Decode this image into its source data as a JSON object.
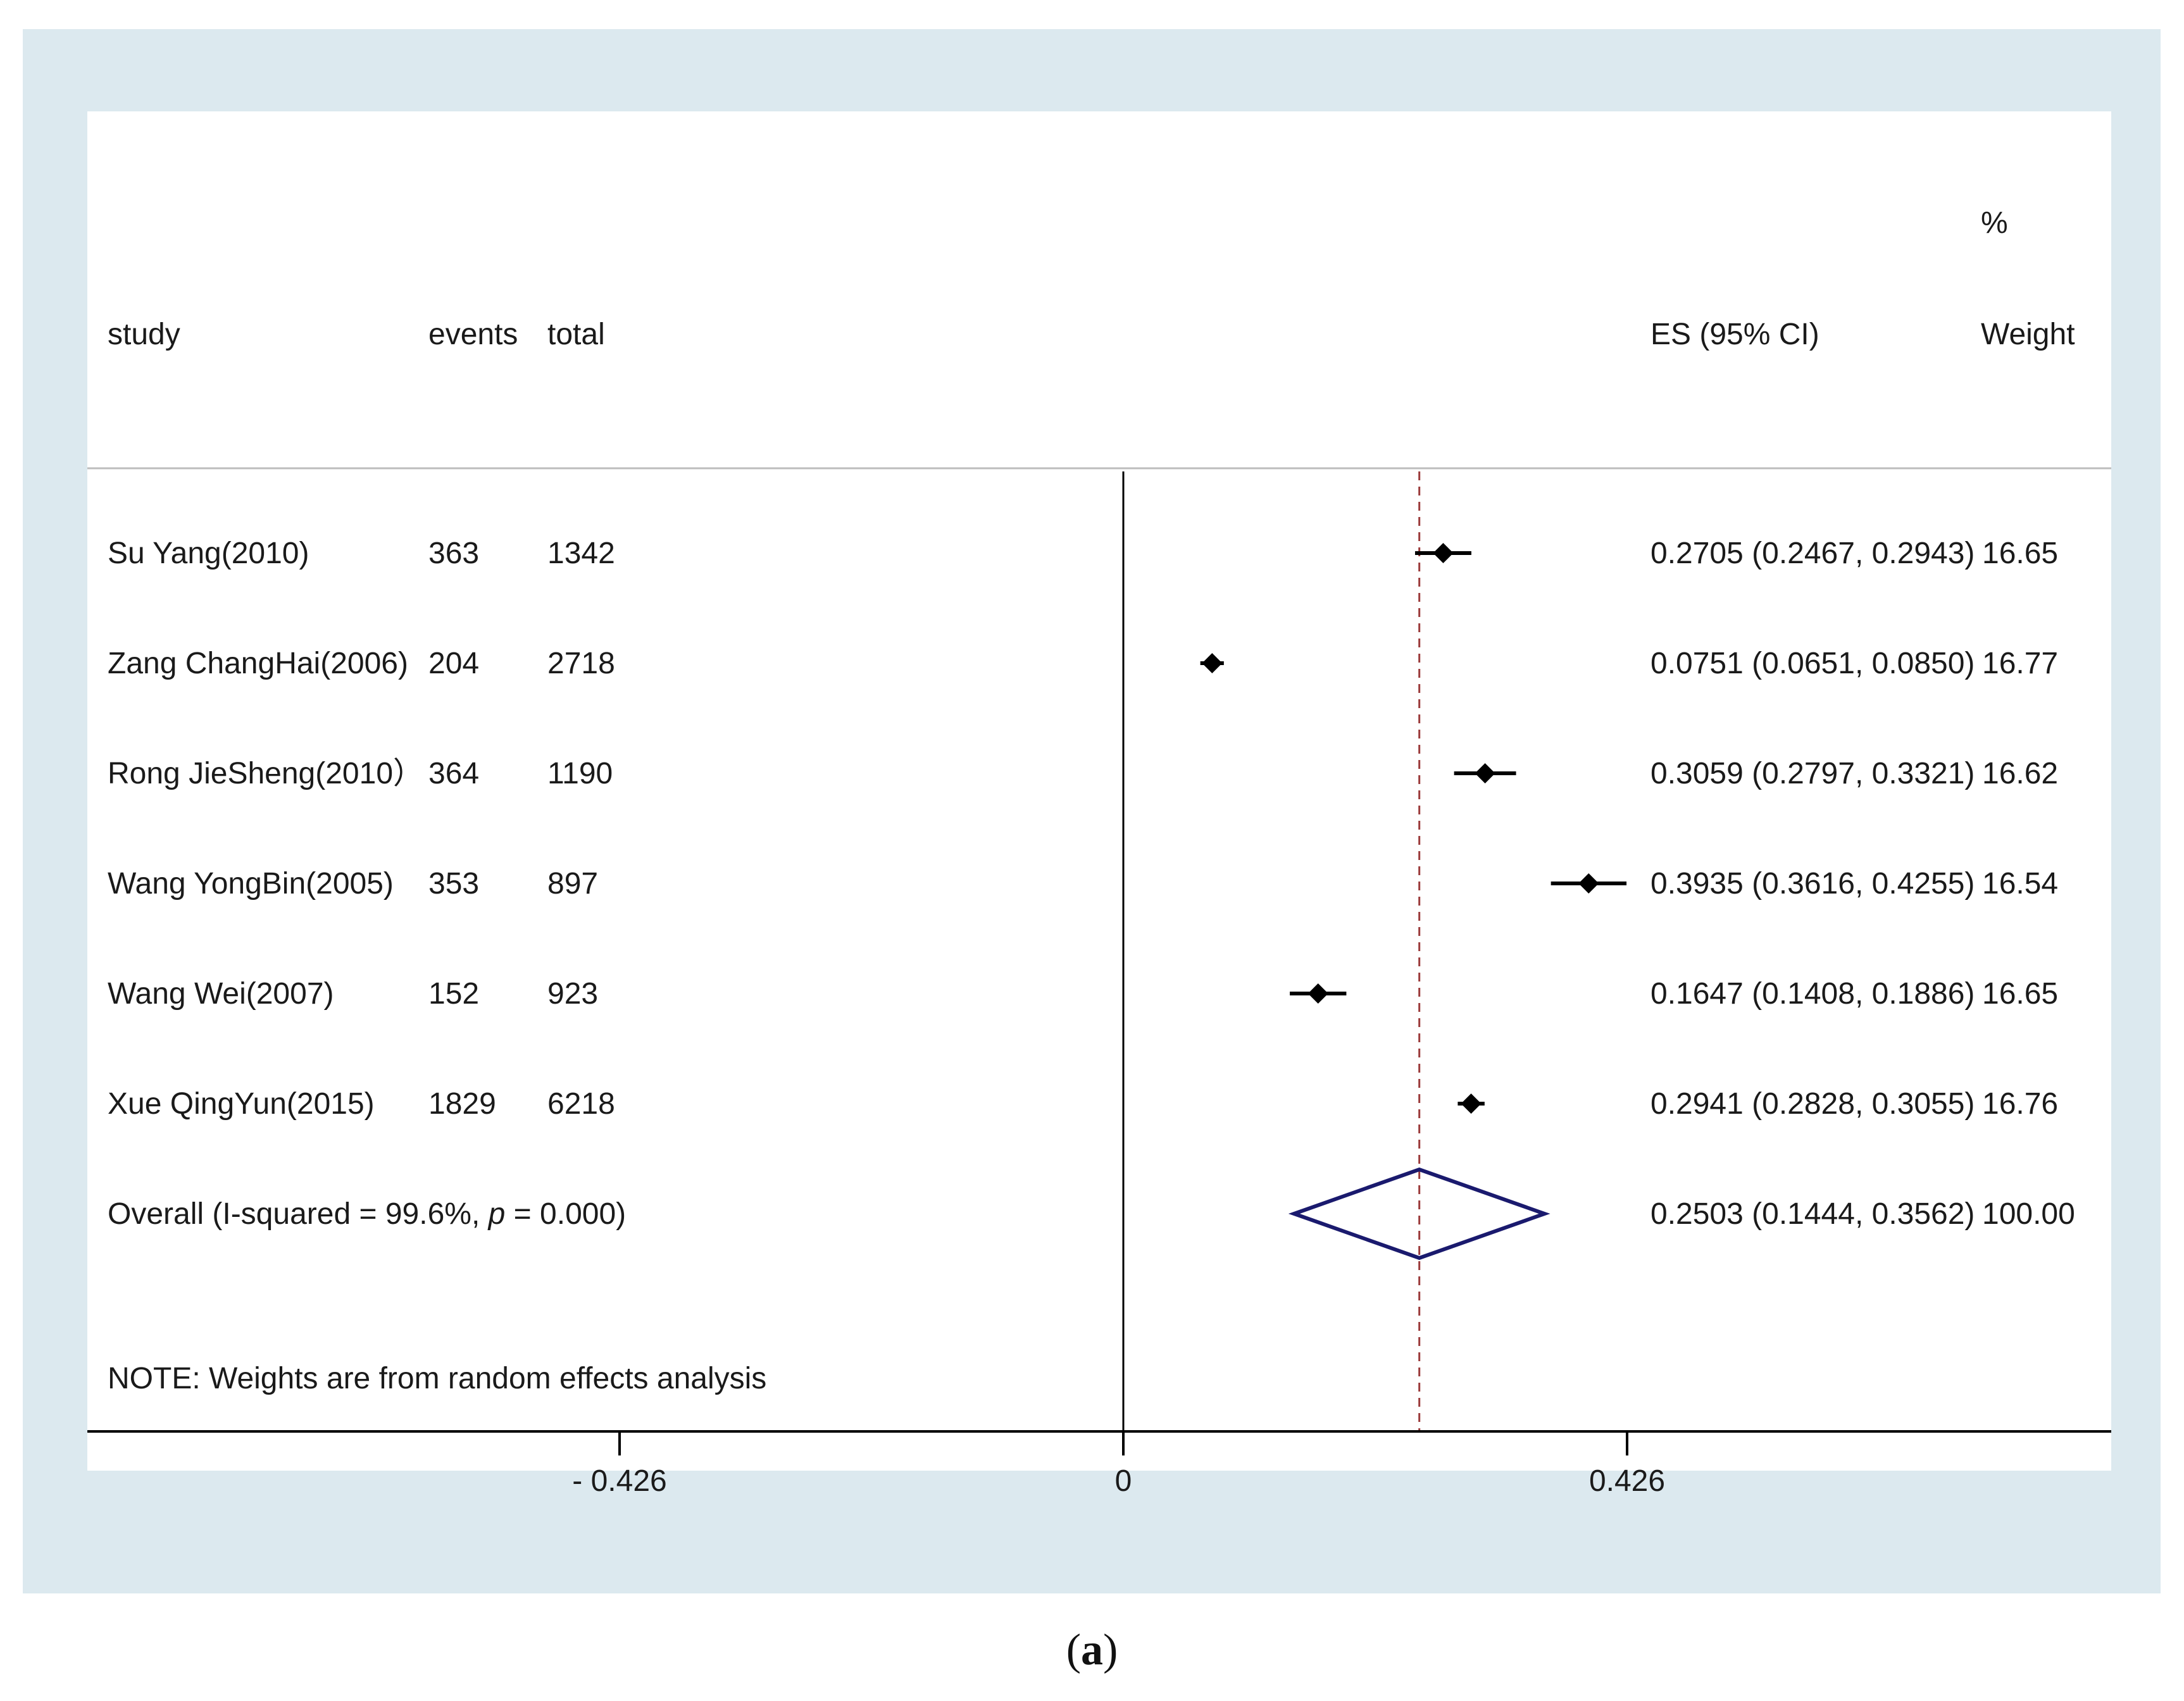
{
  "chart_data": {
    "type": "forest",
    "columns": {
      "study": "study",
      "events": "events",
      "total": "total",
      "es": "ES (95% CI)",
      "weight_top": "%",
      "weight": "Weight"
    },
    "studies": [
      {
        "study": "Su Yang(2010)",
        "events": "363",
        "total": "1342",
        "es": 0.2705,
        "lo": 0.2467,
        "hi": 0.2943,
        "es_text": "0.2705 (0.2467, 0.2943)",
        "weight": "16.65"
      },
      {
        "study": "Zang ChangHai(2006)",
        "events": "204",
        "total": "2718",
        "es": 0.0751,
        "lo": 0.0651,
        "hi": 0.085,
        "es_text": "0.0751 (0.0651, 0.0850)",
        "weight": "16.77"
      },
      {
        "study": "Rong JieSheng(2010）",
        "events": "364",
        "total": "1190",
        "es": 0.3059,
        "lo": 0.2797,
        "hi": 0.3321,
        "es_text": "0.3059 (0.2797, 0.3321)",
        "weight": "16.62"
      },
      {
        "study": "Wang YongBin(2005)",
        "events": "353",
        "total": "897",
        "es": 0.3935,
        "lo": 0.3616,
        "hi": 0.4255,
        "es_text": "0.3935 (0.3616, 0.4255)",
        "weight": "16.54"
      },
      {
        "study": "Wang Wei(2007)",
        "events": "152",
        "total": "923",
        "es": 0.1647,
        "lo": 0.1408,
        "hi": 0.1886,
        "es_text": "0.1647 (0.1408, 0.1886)",
        "weight": "16.65"
      },
      {
        "study": "Xue QingYun(2015)",
        "events": "1829",
        "total": "6218",
        "es": 0.2941,
        "lo": 0.2828,
        "hi": 0.3055,
        "es_text": "0.2941 (0.2828, 0.3055)",
        "weight": "16.76"
      }
    ],
    "overall": {
      "label": "Overall  (I-squared = 99.6%, ",
      "label_p": "p",
      "label_end": " = 0.000)",
      "es": 0.2503,
      "lo": 0.1444,
      "hi": 0.3562,
      "es_text": "0.2503 (0.1444, 0.3562)",
      "weight": "100.00"
    },
    "note": "NOTE: Weights are from random effects analysis",
    "xticks": [
      {
        "value": -0.426,
        "label": "-  0.426"
      },
      {
        "value": 0,
        "label": "0"
      },
      {
        "value": 0.426,
        "label": "0.426"
      }
    ],
    "xlim": [
      -0.426,
      0.426
    ],
    "colors": {
      "background": "#dce9ef",
      "panel": "#ffffff",
      "marker": "#000000",
      "diamond": "#1a1a6e",
      "overall_line": "#9b3a3a"
    }
  },
  "caption": {
    "open": "(",
    "letter": "a",
    "close": ")"
  }
}
